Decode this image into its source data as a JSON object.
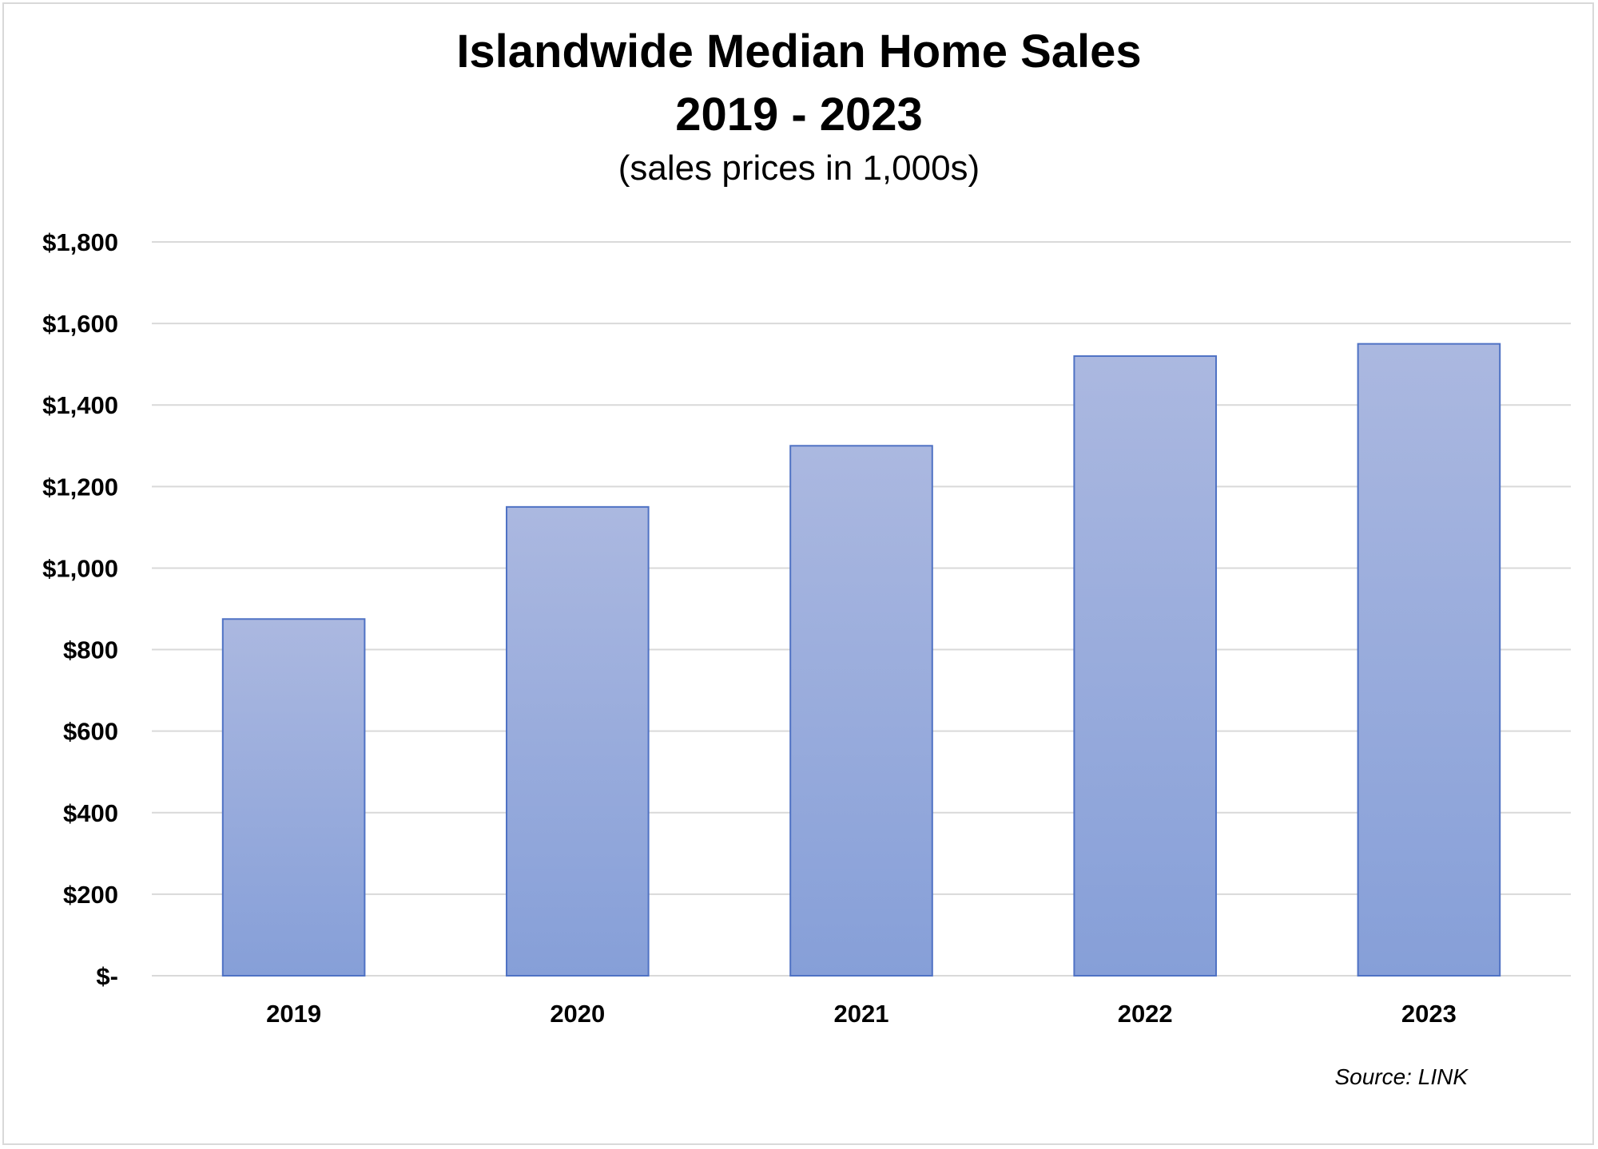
{
  "chart_data": {
    "type": "bar",
    "title": "Islandwide Median Home Sales",
    "title_line2": "2019 - 2023",
    "subtitle": "(sales prices in 1,000s)",
    "categories": [
      "2019",
      "2020",
      "2021",
      "2022",
      "2023"
    ],
    "values": [
      875,
      1150,
      1300,
      1520,
      1550
    ],
    "ylim": [
      0,
      1800
    ],
    "y_ticks": [
      0,
      200,
      400,
      600,
      800,
      1000,
      1200,
      1400,
      1600,
      1800
    ],
    "y_tick_labels": [
      "$-",
      "$200",
      "$400",
      "$600",
      "$800",
      "$1,000",
      "$1,200",
      "$1,400",
      "$1,600",
      "$1,800"
    ],
    "grid": true,
    "xlabel": "",
    "ylabel": "",
    "source": "Source: LINK",
    "colors": {
      "bar_top": "#abb8e0",
      "bar_bottom": "#869fd8",
      "bar_border": "#4f72c4",
      "gridline": "#d9d9d9"
    }
  }
}
